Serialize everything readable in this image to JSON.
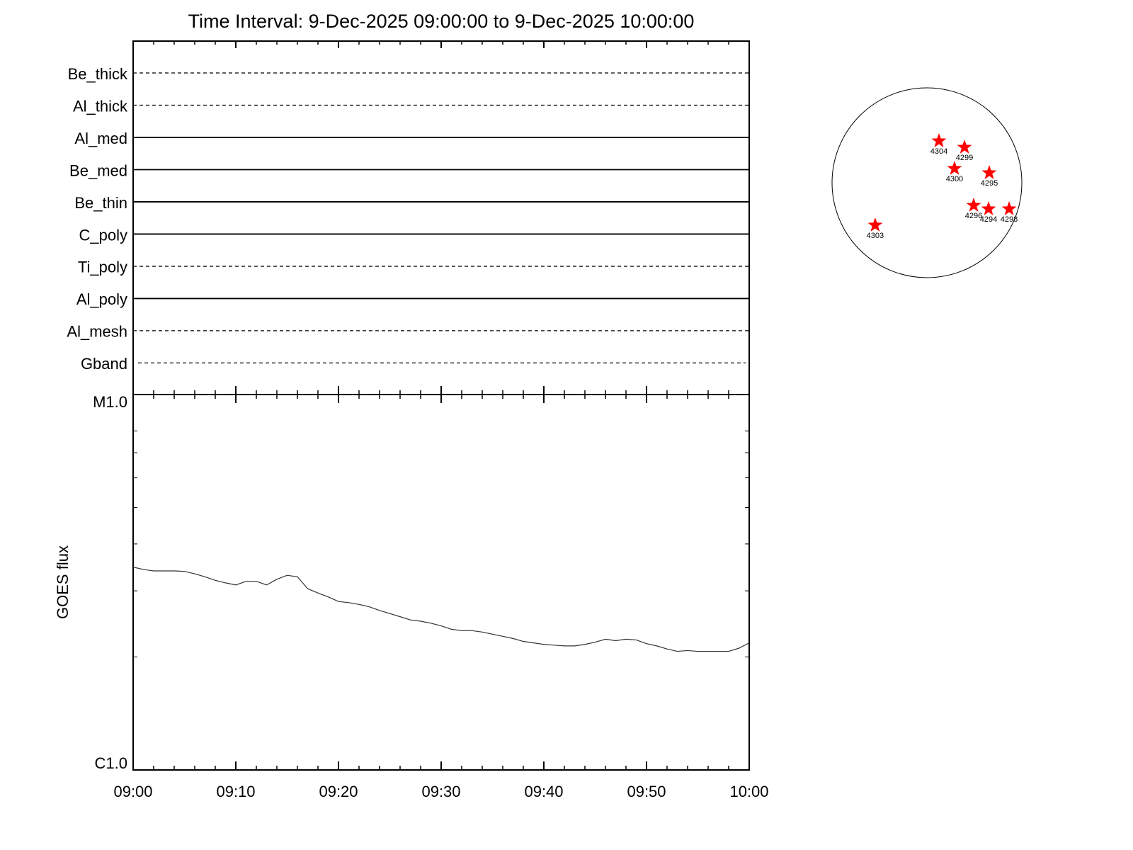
{
  "chart_data": [
    {
      "type": "timeline",
      "title": "Time Interval:  9-Dec-2025 09:00:00 to  9-Dec-2025 10:00:00",
      "rows": [
        {
          "name": "Be_thick",
          "style": "dashed"
        },
        {
          "name": "Al_thick",
          "style": "dashed"
        },
        {
          "name": "Al_med",
          "style": "solid"
        },
        {
          "name": "Be_med",
          "style": "solid"
        },
        {
          "name": "Be_thin",
          "style": "solid"
        },
        {
          "name": "C_poly",
          "style": "solid"
        },
        {
          "name": "Ti_poly",
          "style": "dashed"
        },
        {
          "name": "Al_poly",
          "style": "solid"
        },
        {
          "name": "Al_mesh",
          "style": "dashed"
        },
        {
          "name": "Gband",
          "style": "dashed"
        }
      ]
    },
    {
      "type": "line",
      "ylabel": "GOES flux",
      "log_scale": true,
      "color": "#333333",
      "x": [
        "09:00",
        "09:01",
        "09:02",
        "09:03",
        "09:04",
        "09:05",
        "09:06",
        "09:07",
        "09:08",
        "09:09",
        "09:10",
        "09:11",
        "09:12",
        "09:13",
        "09:14",
        "09:15",
        "09:16",
        "09:17",
        "09:18",
        "09:19",
        "09:20",
        "09:21",
        "09:22",
        "09:23",
        "09:24",
        "09:25",
        "09:26",
        "09:27",
        "09:28",
        "09:29",
        "09:30",
        "09:31",
        "09:32",
        "09:33",
        "09:34",
        "09:35",
        "09:36",
        "09:37",
        "09:38",
        "09:39",
        "09:40",
        "09:41",
        "09:42",
        "09:43",
        "09:44",
        "09:45",
        "09:46",
        "09:47",
        "09:48",
        "09:49",
        "09:50",
        "09:51",
        "09:52",
        "09:53",
        "09:54",
        "09:55",
        "09:56",
        "09:57",
        "09:58",
        "09:59",
        "10:00"
      ],
      "values": [
        3.47e-06,
        3.42e-06,
        3.39e-06,
        3.39e-06,
        3.39e-06,
        3.38e-06,
        3.33e-06,
        3.27e-06,
        3.2e-06,
        3.15e-06,
        3.11e-06,
        3.18e-06,
        3.18e-06,
        3.11e-06,
        3.22e-06,
        3.3e-06,
        3.27e-06,
        3.04e-06,
        2.96e-06,
        2.89e-06,
        2.81e-06,
        2.79e-06,
        2.76e-06,
        2.72e-06,
        2.66e-06,
        2.61e-06,
        2.56e-06,
        2.51e-06,
        2.49e-06,
        2.46e-06,
        2.42e-06,
        2.37e-06,
        2.35e-06,
        2.35e-06,
        2.33e-06,
        2.3e-06,
        2.27e-06,
        2.24e-06,
        2.2e-06,
        2.18e-06,
        2.16e-06,
        2.15e-06,
        2.14e-06,
        2.14e-06,
        2.16e-06,
        2.19e-06,
        2.23e-06,
        2.21e-06,
        2.23e-06,
        2.22e-06,
        2.17e-06,
        2.14e-06,
        2.1e-06,
        2.07e-06,
        2.08e-06,
        2.07e-06,
        2.07e-06,
        2.07e-06,
        2.07e-06,
        2.11e-06,
        2.18e-06
      ],
      "xlim": [
        "09:00",
        "10:00"
      ],
      "xticks": [
        "09:00",
        "09:10",
        "09:20",
        "09:30",
        "09:40",
        "09:50",
        "10:00"
      ],
      "xminorticks": [
        "09:02",
        "09:04",
        "09:06",
        "09:08",
        "09:12",
        "09:14",
        "09:16",
        "09:18",
        "09:22",
        "09:24",
        "09:26",
        "09:28",
        "09:32",
        "09:34",
        "09:36",
        "09:38",
        "09:42",
        "09:44",
        "09:46",
        "09:48",
        "09:52",
        "09:54",
        "09:56",
        "09:58"
      ],
      "ylim": [
        1e-06,
        1e-05
      ],
      "yticks": [
        {
          "value": 1e-06,
          "label": "C1.0"
        },
        {
          "value": 1e-05,
          "label": "M1.0"
        }
      ],
      "yminorticks": [
        2e-06,
        3e-06,
        4e-06,
        5e-06,
        6e-06,
        7e-06,
        8e-06
      ]
    },
    {
      "type": "scatter",
      "disk_radius": 970,
      "color": "#ff0000",
      "labels": [
        "4304",
        "4299",
        "4300",
        "4295",
        "4296",
        "4294",
        "4298",
        "4303"
      ],
      "x": [
        123,
        384,
        282,
        637,
        478,
        630,
        840,
        -529
      ],
      "y": [
        427,
        362,
        145,
        101,
        -232,
        -268,
        -268,
        -434
      ]
    }
  ]
}
